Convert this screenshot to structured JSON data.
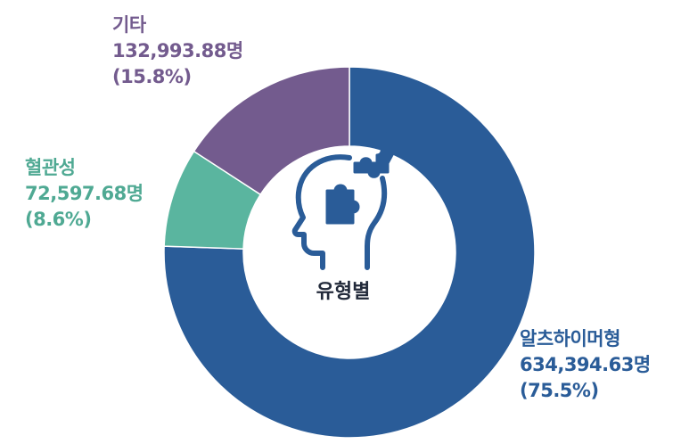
{
  "chart_data": {
    "type": "pie",
    "donut": true,
    "center_label": "유형별",
    "categories": [
      "알츠하이머형",
      "혈관성",
      "기타"
    ],
    "values": [
      634394.63,
      72597.68,
      132993.88
    ],
    "value_labels": [
      "634,394.63명",
      "72,597.68명",
      "132,993.88명"
    ],
    "percents": [
      75.5,
      8.6,
      15.8
    ],
    "percent_labels": [
      "(75.5%)",
      "(8.6%)",
      "(15.8%)"
    ],
    "colors": [
      "#2a5c98",
      "#5ab59f",
      "#735b8e"
    ],
    "label_colors": [
      "#2a5c98",
      "#4fa993",
      "#735b8e"
    ]
  },
  "icons": {
    "center": "head-puzzle-icon"
  }
}
